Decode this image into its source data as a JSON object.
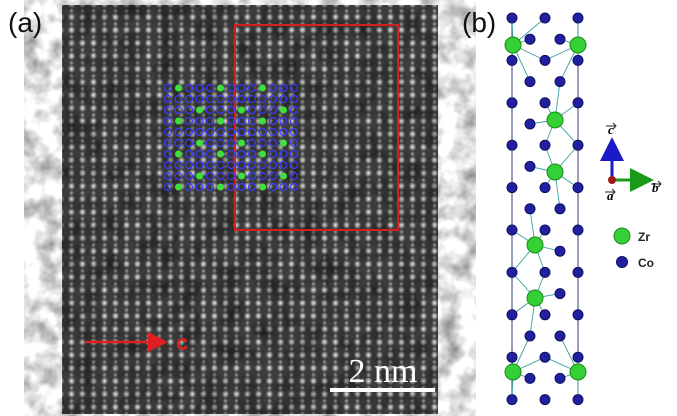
{
  "panel_a": {
    "label": "(a)",
    "direction_label": "c",
    "scale_bar": "2 nm"
  },
  "panel_b": {
    "label": "(b)",
    "axes": {
      "c": "c",
      "a": "a",
      "b": "b"
    },
    "legend": [
      {
        "label": "Zr"
      },
      {
        "label": "Co"
      }
    ]
  }
}
